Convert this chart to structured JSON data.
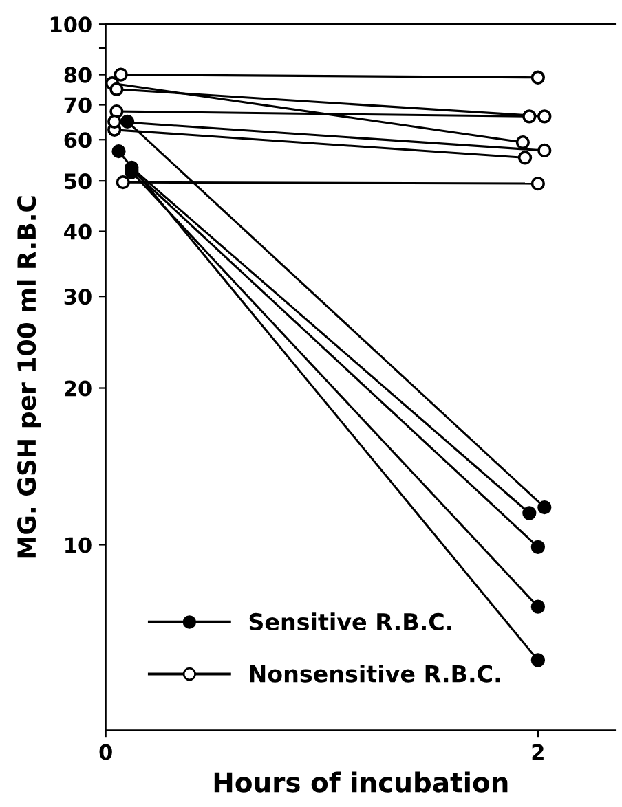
{
  "chart_data": {
    "type": "line",
    "xlabel": "Hours of incubation",
    "ylabel": "MG. GSH per 100 ml R.B.C",
    "xlim": [
      0,
      2.36
    ],
    "ylim": [
      4.4,
      100
    ],
    "log": "y",
    "xticks": [
      0,
      2
    ],
    "yticks": [
      10,
      20,
      30,
      40,
      50,
      60,
      70,
      80,
      {
        "value": 90,
        "label": null
      },
      100
    ],
    "grid": false,
    "legend": "bottom left",
    "marker": "circle",
    "line_style": "solid",
    "series": [
      {
        "name": "Sensitive R.B.C.",
        "color": "#000000",
        "x": [
          0.1,
          2.03
        ],
        "values": [
          65,
          11.8
        ]
      },
      {
        "color": "#000000",
        "x": [
          0.06,
          2.0
        ],
        "values": [
          57,
          6
        ]
      },
      {
        "color": "#000000",
        "x": [
          0.12,
          1.96
        ],
        "values": [
          53,
          11.5
        ]
      },
      {
        "color": "#000000",
        "x": [
          0.12,
          2.0
        ],
        "values": [
          52.5,
          9.9
        ]
      },
      {
        "color": "#000000",
        "x": [
          0.12,
          2.0
        ],
        "values": [
          52,
          7.6
        ]
      },
      {
        "name": "Nonsensitive R.B.C.",
        "color": "#ffffff",
        "x": [
          0.07,
          2.0
        ],
        "values": [
          80,
          79
        ]
      },
      {
        "color": "#ffffff",
        "x": [
          0.03,
          1.93
        ],
        "values": [
          77,
          59.3
        ]
      },
      {
        "color": "#ffffff",
        "x": [
          0.05,
          2.03
        ],
        "values": [
          75,
          66.5
        ]
      },
      {
        "color": "#ffffff",
        "x": [
          0.05,
          1.96
        ],
        "values": [
          68,
          66.5
        ]
      },
      {
        "color": "#ffffff",
        "x": [
          0.04,
          1.94
        ],
        "values": [
          62.7,
          55.4
        ]
      },
      {
        "color": "#ffffff",
        "x": [
          0.04,
          2.03
        ],
        "values": [
          65,
          57.2
        ]
      },
      {
        "color": "#ffffff",
        "x": [
          0.08,
          2.0
        ],
        "values": [
          49.7,
          49.4
        ]
      }
    ]
  }
}
